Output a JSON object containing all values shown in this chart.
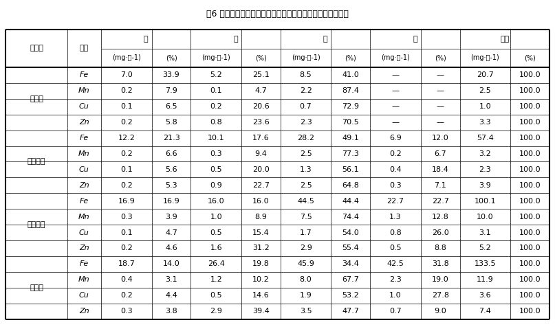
{
  "title": "表6 不同生育期番茄植株各器官对铁、锰、铜、锌的分配特性",
  "header_row1": [
    "生育期",
    "养分",
    "根",
    "茎",
    "叶",
    "果",
    "总株"
  ],
  "header_row2_sub": [
    "(mg·株-1)",
    "(%)",
    "(mg·株-1)",
    "(%)",
    "(mg·株-1)",
    "(%)",
    "(mg·株-1)",
    "(%)",
    "(mg·株-1)",
    "(%)"
  ],
  "groups": [
    {
      "name": "开花期",
      "rows": [
        [
          "Fe",
          "7.0",
          "33.9",
          "5.2",
          "25.1",
          "8.5",
          "41.0",
          "—",
          "—",
          "20.7",
          "100.0"
        ],
        [
          "Mn",
          "0.2",
          "7.9",
          "0.1",
          "4.7",
          "2.2",
          "87.4",
          "—",
          "—",
          "2.5",
          "100.0"
        ],
        [
          "Cu",
          "0.1",
          "6.5",
          "0.2",
          "20.6",
          "0.7",
          "72.9",
          "—",
          "—",
          "1.0",
          "100.0"
        ],
        [
          "Zn",
          "0.2",
          "5.8",
          "0.8",
          "23.6",
          "2.3",
          "70.5",
          "—",
          "—",
          "3.3",
          "100.0"
        ]
      ]
    },
    {
      "name": "坐果初期",
      "rows": [
        [
          "Fe",
          "12.2",
          "21.3",
          "10.1",
          "17.6",
          "28.2",
          "49.1",
          "6.9",
          "12.0",
          "57.4",
          "100.0"
        ],
        [
          "Mn",
          "0.2",
          "6.6",
          "0.3",
          "9.4",
          "2.5",
          "77.3",
          "0.2",
          "6.7",
          "3.2",
          "100.0"
        ],
        [
          "Cu",
          "0.1",
          "5.6",
          "0.5",
          "20.0",
          "1.3",
          "56.1",
          "0.4",
          "18.4",
          "2.3",
          "100.0"
        ],
        [
          "Zn",
          "0.2",
          "5.3",
          "0.9",
          "22.7",
          "2.5",
          "64.8",
          "0.3",
          "7.1",
          "3.9",
          "100.0"
        ]
      ]
    },
    {
      "name": "坐果后期",
      "rows": [
        [
          "Fe",
          "16.9",
          "16.9",
          "16.0",
          "16.0",
          "44.5",
          "44.4",
          "22.7",
          "22.7",
          "100.1",
          "100.0"
        ],
        [
          "Mn",
          "0.3",
          "3.9",
          "1.0",
          "8.9",
          "7.5",
          "74.4",
          "1.3",
          "12.8",
          "10.0",
          "100.0"
        ],
        [
          "Cu",
          "0.1",
          "4.7",
          "0.5",
          "15.4",
          "1.7",
          "54.0",
          "0.8",
          "26.0",
          "3.1",
          "100.0"
        ],
        [
          "Zn",
          "0.2",
          "4.6",
          "1.6",
          "31.2",
          "2.9",
          "55.4",
          "0.5",
          "8.8",
          "5.2",
          "100.0"
        ]
      ]
    },
    {
      "name": "成熟期",
      "rows": [
        [
          "Fe",
          "18.7",
          "14.0",
          "26.4",
          "19.8",
          "45.9",
          "34.4",
          "42.5",
          "31.8",
          "133.5",
          "100.0"
        ],
        [
          "Mn",
          "0.4",
          "3.1",
          "1.2",
          "10.2",
          "8.0",
          "67.7",
          "2.3",
          "19.0",
          "11.9",
          "100.0"
        ],
        [
          "Cu",
          "0.2",
          "4.4",
          "0.5",
          "14.6",
          "1.9",
          "53.2",
          "1.0",
          "27.8",
          "3.6",
          "100.0"
        ],
        [
          "Zn",
          "0.3",
          "3.8",
          "2.9",
          "39.4",
          "3.5",
          "47.7",
          "0.7",
          "9.0",
          "7.4",
          "100.0"
        ]
      ]
    }
  ],
  "font_family": "SimSun",
  "font_size_title": 9,
  "font_size_header": 8,
  "font_size_body": 8,
  "thick_lw": 1.5,
  "thin_lw": 0.5,
  "fig_w": 8.07,
  "fig_h": 4.79,
  "dpi": 100,
  "bg_color": "#ffffff"
}
